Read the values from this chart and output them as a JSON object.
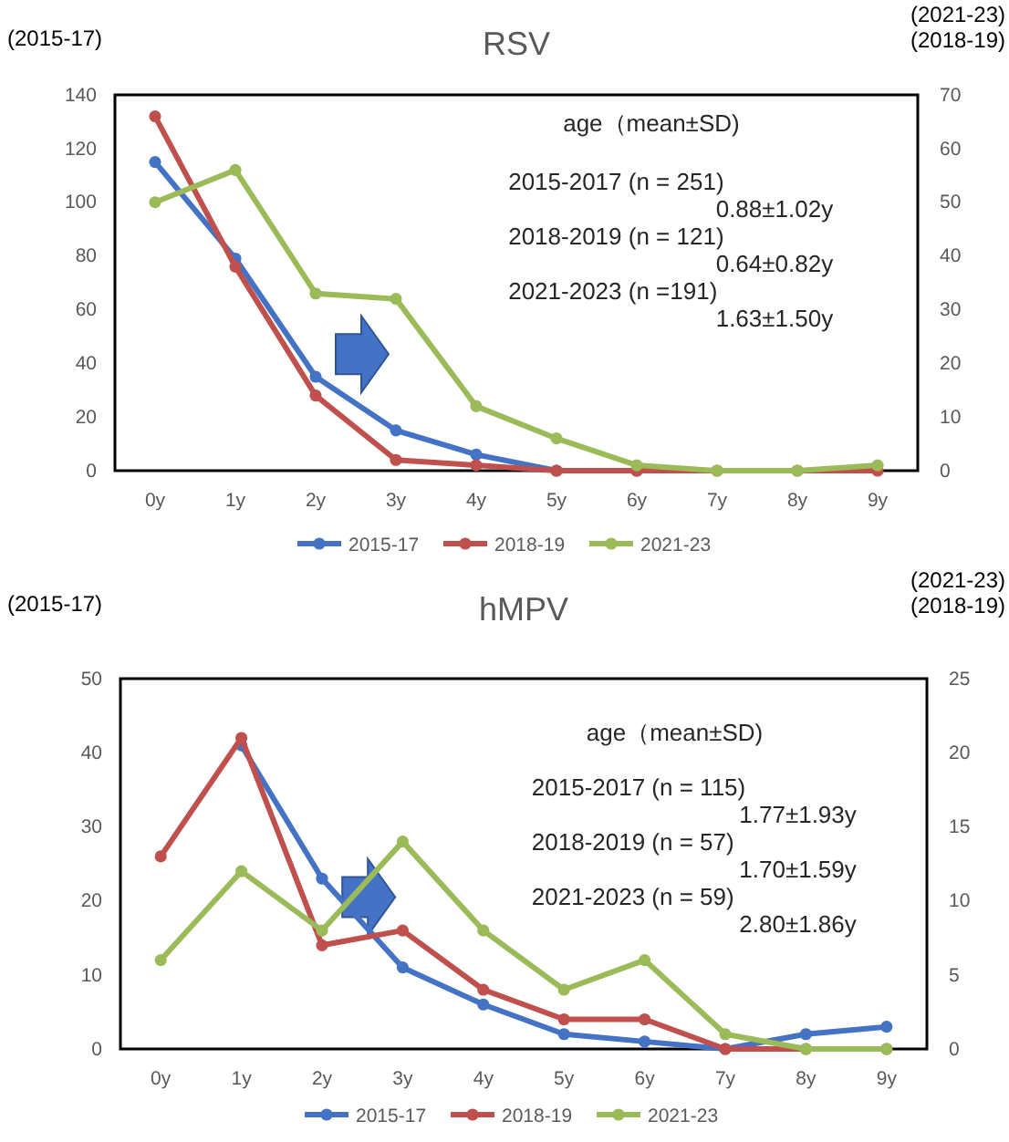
{
  "chart_data": [
    {
      "type": "line",
      "title": "RSV",
      "ylabel": "(2015-17)",
      "y2label": "(2021-23)\n(2018-19)",
      "categories": [
        "0y",
        "1y",
        "2y",
        "3y",
        "4y",
        "5y",
        "6y",
        "7y",
        "8y",
        "9y"
      ],
      "series": [
        {
          "name": "2015-17",
          "color": "#4472c4",
          "values": [
            115,
            79,
            35,
            15,
            6,
            0,
            0,
            null,
            null,
            null
          ]
        },
        {
          "name": "2018-19",
          "color": "#c0504d",
          "axis": "y2",
          "values": [
            66,
            38,
            14,
            2,
            1,
            0,
            0,
            0,
            0,
            0
          ]
        },
        {
          "name": "2021-23",
          "color": "#9bbb59",
          "axis": "y2",
          "values": [
            50,
            56,
            33,
            32,
            12,
            6,
            1,
            0,
            0,
            1
          ]
        }
      ],
      "ylim": [
        0,
        140
      ],
      "yticks": [
        0,
        20,
        40,
        60,
        80,
        100,
        120,
        140
      ],
      "y2lim": [
        0,
        70
      ],
      "y2ticks": [
        0,
        10,
        20,
        30,
        40,
        50,
        60,
        70
      ],
      "annotations": [
        "age（mean±SD)",
        "2015-2017 (n = 251)",
        "0.88±1.02y",
        "2018-2019 (n = 121)",
        "0.64±0.82y",
        "2021-2023 (n =191)",
        "1.63±1.50y"
      ],
      "marker": "circle",
      "legend": "bottom",
      "grid": false
    },
    {
      "type": "line",
      "title": "hMPV",
      "ylabel": "(2015-17)",
      "y2label": "(2021-23)\n(2018-19)",
      "categories": [
        "0y",
        "1y",
        "2y",
        "3y",
        "4y",
        "5y",
        "6y",
        "7y",
        "8y",
        "9y"
      ],
      "series": [
        {
          "name": "2015-17",
          "color": "#4472c4",
          "values": [
            null,
            41,
            23,
            11,
            6,
            2,
            1,
            0,
            2,
            3
          ]
        },
        {
          "name": "2018-19",
          "color": "#c0504d",
          "axis": "y2",
          "values": [
            13,
            21,
            7,
            8,
            4,
            2,
            2,
            0,
            0,
            0
          ]
        },
        {
          "name": "2021-23",
          "color": "#9bbb59",
          "axis": "y2",
          "values": [
            6,
            12,
            8,
            14,
            8,
            4,
            6,
            1,
            0,
            0
          ]
        }
      ],
      "ylim": [
        0,
        50
      ],
      "yticks": [
        0,
        10,
        20,
        30,
        40,
        50
      ],
      "y2lim": [
        0,
        25
      ],
      "y2ticks": [
        0,
        5,
        10,
        15,
        20,
        25
      ],
      "annotations": [
        "age（mean±SD)",
        "2015-2017 (n = 115)",
        "1.77±1.93y",
        "2018-2019 (n = 57)",
        "1.70±1.59y",
        "2021-2023 (n = 59)",
        "2.80±1.86y"
      ],
      "marker": "circle",
      "legend": "bottom",
      "grid": false
    }
  ]
}
